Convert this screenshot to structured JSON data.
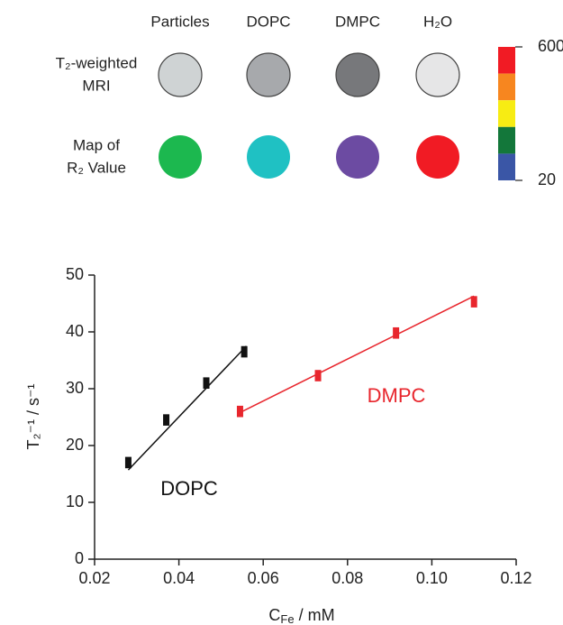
{
  "mri_panel": {
    "columns": [
      "Particles",
      "DOPC",
      "DMPC",
      "H₂O"
    ],
    "rows": [
      {
        "label": [
          "T₂-weighted",
          "MRI"
        ],
        "colors": [
          "#cfd3d4",
          "#a7a9ac",
          "#77787b",
          "#e6e6e7"
        ]
      },
      {
        "label": [
          "Map of",
          "R₂ Value"
        ],
        "colors": [
          "#1cb84f",
          "#1fc1c3",
          "#6c4ba2",
          "#f11b24"
        ]
      }
    ],
    "colorbar": {
      "colors": [
        "#f11b24",
        "#f7861f",
        "#f7ec13",
        "#13773a",
        "#3a56a6"
      ],
      "max_label": "600",
      "min_label": "20"
    }
  },
  "chart_data": {
    "type": "scatter",
    "x_label": "C",
    "x_label_sub": "Fe",
    "x_label_unit": " /  mM",
    "y_label": "T₂⁻¹ / s⁻¹",
    "xlim": [
      0.02,
      0.12
    ],
    "xticks": [
      0.02,
      0.04,
      0.06,
      0.08,
      {
        "value": 0.1,
        "label": "0.10"
      },
      0.12
    ],
    "ylim": [
      0,
      50
    ],
    "yticks": [
      0,
      10,
      20,
      30,
      40,
      50
    ],
    "series": [
      {
        "name": "DOPC",
        "color": "#111111",
        "x": [
          0.028,
          0.037,
          0.0465,
          0.0555
        ],
        "values": [
          17,
          24.5,
          31,
          36.5
        ],
        "errors": [
          1,
          1,
          1,
          1
        ],
        "fit_x": [
          0.028,
          0.056
        ],
        "fit_y": [
          15.7,
          37.5
        ]
      },
      {
        "name": "DMPC",
        "color": "#e8262d",
        "x": [
          0.0545,
          0.073,
          0.0915,
          0.11
        ],
        "values": [
          26,
          32.3,
          39.8,
          45.3
        ],
        "errors": [
          1,
          1,
          1,
          1
        ],
        "fit_x": [
          0.0545,
          0.11
        ],
        "fit_y": [
          25.8,
          46.3
        ]
      }
    ]
  }
}
